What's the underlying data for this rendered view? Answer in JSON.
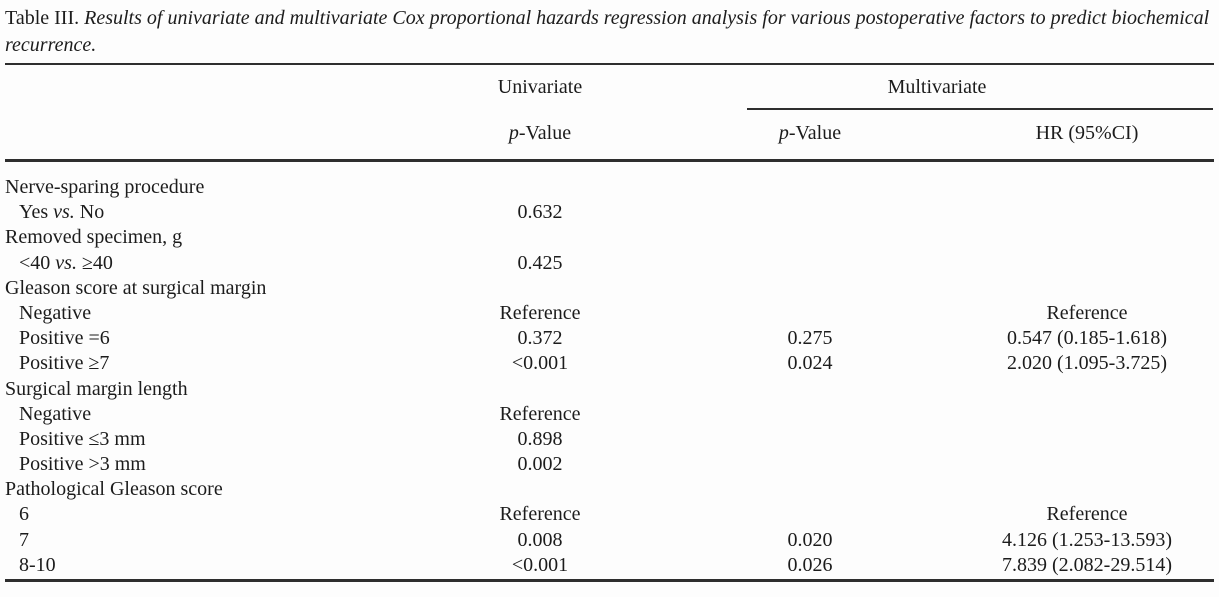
{
  "title": {
    "label": "Table III.",
    "caption": "Results of univariate and multivariate Cox proportional hazards regression analysis for various postoperative factors to predict biochemical recurrence."
  },
  "header": {
    "univariate_group": "Univariate",
    "multivariate_group": "Multivariate",
    "univariate_p": {
      "italic": "p",
      "rest": "-Value"
    },
    "multivariate_p": {
      "italic": "p",
      "rest": "-Value"
    },
    "hr": "HR (95%CI)"
  },
  "rows": [
    {
      "label": "Nerve-sparing procedure",
      "indent": false,
      "uni": "",
      "multi_p": "",
      "hr": ""
    },
    {
      "label": "Yes vs. No",
      "indent": true,
      "uni": "0.632",
      "multi_p": "",
      "hr": ""
    },
    {
      "label": "Removed specimen, g",
      "indent": false,
      "uni": "",
      "multi_p": "",
      "hr": ""
    },
    {
      "label": "<40 vs. ≥40",
      "indent": true,
      "uni": "0.425",
      "multi_p": "",
      "hr": ""
    },
    {
      "label": "Gleason score at surgical margin",
      "indent": false,
      "uni": "",
      "multi_p": "",
      "hr": ""
    },
    {
      "label": "Negative",
      "indent": true,
      "uni": "Reference",
      "multi_p": "",
      "hr": "Reference"
    },
    {
      "label": "Positive =6",
      "indent": true,
      "uni": "0.372",
      "multi_p": "0.275",
      "hr": "0.547 (0.185-1.618)"
    },
    {
      "label": "Positive ≥7",
      "indent": true,
      "uni": "<0.001",
      "multi_p": "0.024",
      "hr": "2.020 (1.095-3.725)"
    },
    {
      "label": "Surgical margin length",
      "indent": false,
      "uni": "",
      "multi_p": "",
      "hr": ""
    },
    {
      "label": "Negative",
      "indent": true,
      "uni": "Reference",
      "multi_p": "",
      "hr": ""
    },
    {
      "label": "Positive ≤3 mm",
      "indent": true,
      "uni": "0.898",
      "multi_p": "",
      "hr": ""
    },
    {
      "label": "Positive >3 mm",
      "indent": true,
      "uni": "0.002",
      "multi_p": "",
      "hr": ""
    },
    {
      "label": "Pathological Gleason score",
      "indent": false,
      "uni": "",
      "multi_p": "",
      "hr": ""
    },
    {
      "label": "6",
      "indent": true,
      "uni": "Reference",
      "multi_p": "",
      "hr": "Reference"
    },
    {
      "label": "7",
      "indent": true,
      "uni": "0.008",
      "multi_p": "0.020",
      "hr": "4.126 (1.253-13.593)"
    },
    {
      "label": "8-10",
      "indent": true,
      "uni": "<0.001",
      "multi_p": "0.026",
      "hr": "7.839 (2.082-29.514)"
    }
  ]
}
